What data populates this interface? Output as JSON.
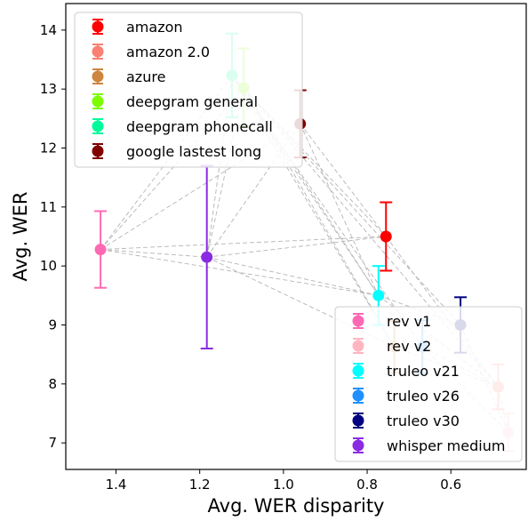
{
  "chart_data": {
    "type": "scatter",
    "xlabel": "Avg. WER disparity",
    "ylabel": "Avg. WER",
    "xlim": [
      1.52,
      0.42
    ],
    "ylim": [
      14.45,
      6.55
    ],
    "y_inverted": true,
    "x_inverted": true,
    "xticks": [
      1.4,
      1.2,
      1.0,
      0.8,
      0.6
    ],
    "xtick_labels": [
      "1.4",
      "1.2",
      "1.0",
      "0.8",
      "0.6"
    ],
    "yticks": [
      7,
      8,
      9,
      10,
      11,
      12,
      13,
      14
    ],
    "ytick_labels": [
      "7",
      "8",
      "9",
      "10",
      "11",
      "12",
      "13",
      "14"
    ],
    "grid": false,
    "legend_placement": [
      "top-left",
      "bottom-right"
    ],
    "series": [
      {
        "name": "amazon",
        "color": "#ff0000",
        "x": 0.755,
        "y": 10.5,
        "err": 0.58
      },
      {
        "name": "amazon 2.0",
        "color": "#fa8072",
        "x": 0.487,
        "y": 7.95,
        "err": 0.38
      },
      {
        "name": "azure",
        "color": "#cd853f",
        "x": 0.735,
        "y": 8.63,
        "err": 0.44
      },
      {
        "name": "deepgram general",
        "color": "#7cfc00",
        "x": 1.095,
        "y": 13.02,
        "err": 0.67
      },
      {
        "name": "deepgram phonecall",
        "color": "#00fa9a",
        "x": 1.123,
        "y": 13.23,
        "err": 0.71
      },
      {
        "name": "google lastest long",
        "color": "#800000",
        "x": 0.96,
        "y": 12.41,
        "err": 0.57
      },
      {
        "name": "rev v1",
        "color": "#ff69b4",
        "x": 1.437,
        "y": 10.28,
        "err": 0.65
      },
      {
        "name": "rev v2",
        "color": "#ffb6c1",
        "x": 0.463,
        "y": 7.18,
        "err": 0.32
      },
      {
        "name": "truleo v21",
        "color": "#00ffff",
        "x": 0.773,
        "y": 9.5,
        "err": 0.5
      },
      {
        "name": "truleo v26",
        "color": "#1e90ff",
        "x": 0.668,
        "y": 8.63,
        "err": 0.45
      },
      {
        "name": "truleo v30",
        "color": "#000080",
        "x": 0.577,
        "y": 9.0,
        "err": 0.47
      },
      {
        "name": "whisper medium",
        "color": "#8a2be2",
        "x": 1.183,
        "y": 10.15,
        "err": 1.55
      }
    ],
    "connections": [
      [
        "rev v1",
        "whisper medium"
      ],
      [
        "rev v1",
        "amazon"
      ],
      [
        "rev v1",
        "truleo v21"
      ],
      [
        "rev v1",
        "deepgram phonecall"
      ],
      [
        "rev v1",
        "deepgram general"
      ],
      [
        "rev v1",
        "google lastest long"
      ],
      [
        "whisper medium",
        "azure"
      ],
      [
        "whisper medium",
        "truleo v21"
      ],
      [
        "whisper medium",
        "amazon"
      ],
      [
        "whisper medium",
        "deepgram phonecall"
      ],
      [
        "whisper medium",
        "deepgram general"
      ],
      [
        "whisper medium",
        "google lastest long"
      ],
      [
        "deepgram phonecall",
        "amazon"
      ],
      [
        "deepgram phonecall",
        "azure"
      ],
      [
        "deepgram phonecall",
        "truleo v26"
      ],
      [
        "deepgram phonecall",
        "truleo v21"
      ],
      [
        "deepgram general",
        "amazon 2.0"
      ],
      [
        "deepgram general",
        "truleo v30"
      ],
      [
        "deepgram general",
        "azure"
      ],
      [
        "deepgram general",
        "truleo v21"
      ],
      [
        "google lastest long",
        "amazon"
      ],
      [
        "google lastest long",
        "truleo v21"
      ],
      [
        "azure",
        "truleo v26"
      ],
      [
        "azure",
        "amazon 2.0"
      ],
      [
        "truleo v21",
        "amazon 2.0"
      ],
      [
        "truleo v21",
        "truleo v30"
      ],
      [
        "truleo v26",
        "amazon 2.0"
      ],
      [
        "truleo v26",
        "rev v2"
      ],
      [
        "truleo v30",
        "rev v2"
      ],
      [
        "amazon",
        "amazon 2.0"
      ],
      [
        "amazon 2.0",
        "rev v2"
      ]
    ],
    "legends": [
      {
        "placement": "top-left",
        "entries": [
          "amazon",
          "amazon 2.0",
          "azure",
          "deepgram general",
          "deepgram phonecall",
          "google lastest long"
        ]
      },
      {
        "placement": "bottom-right",
        "entries": [
          "rev v1",
          "rev v2",
          "truleo v21",
          "truleo v26",
          "truleo v30",
          "whisper medium"
        ]
      }
    ]
  }
}
